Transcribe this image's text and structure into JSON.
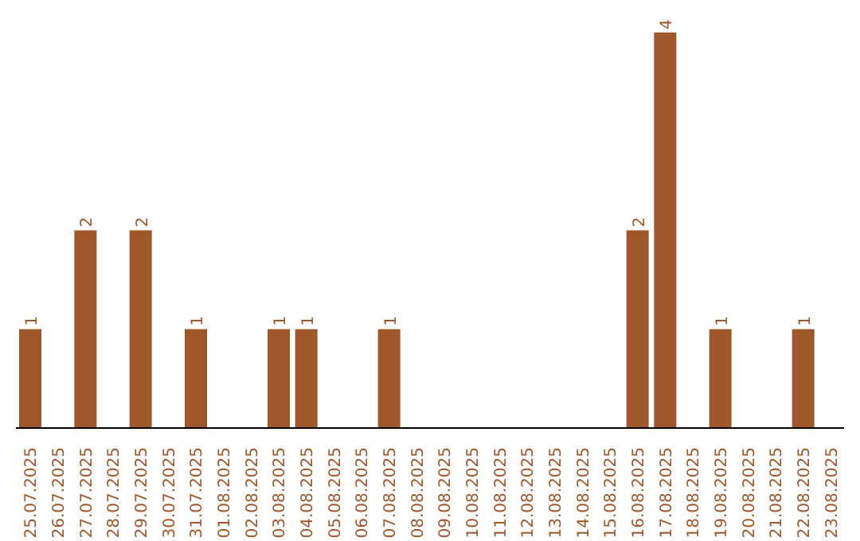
{
  "chart_data": {
    "type": "bar",
    "categories": [
      "25.07.2025",
      "26.07.2025",
      "27.07.2025",
      "28.07.2025",
      "29.07.2025",
      "30.07.2025",
      "31.07.2025",
      "01.08.2025",
      "02.08.2025",
      "03.08.2025",
      "04.08.2025",
      "05.08.2025",
      "06.08.2025",
      "07.08.2025",
      "08.08.2025",
      "09.08.2025",
      "10.08.2025",
      "11.08.2025",
      "12.08.2025",
      "13.08.2025",
      "14.08.2025",
      "15.08.2025",
      "16.08.2025",
      "17.08.2025",
      "18.08.2025",
      "19.08.2025",
      "20.08.2025",
      "21.08.2025",
      "22.08.2025",
      "23.08.2025"
    ],
    "values": [
      1,
      0,
      2,
      0,
      2,
      0,
      1,
      0,
      0,
      1,
      1,
      0,
      0,
      1,
      0,
      0,
      0,
      0,
      0,
      0,
      0,
      0,
      2,
      4,
      0,
      1,
      0,
      0,
      1,
      0
    ],
    "value_labels": [
      "1",
      null,
      "2",
      null,
      "2",
      null,
      "1",
      null,
      null,
      "1",
      "1",
      null,
      null,
      "1",
      null,
      null,
      null,
      null,
      null,
      null,
      null,
      null,
      "2",
      "4",
      null,
      "1",
      null,
      null,
      "1",
      null
    ],
    "color": "#a0572b",
    "grid": false,
    "legend": false
  }
}
